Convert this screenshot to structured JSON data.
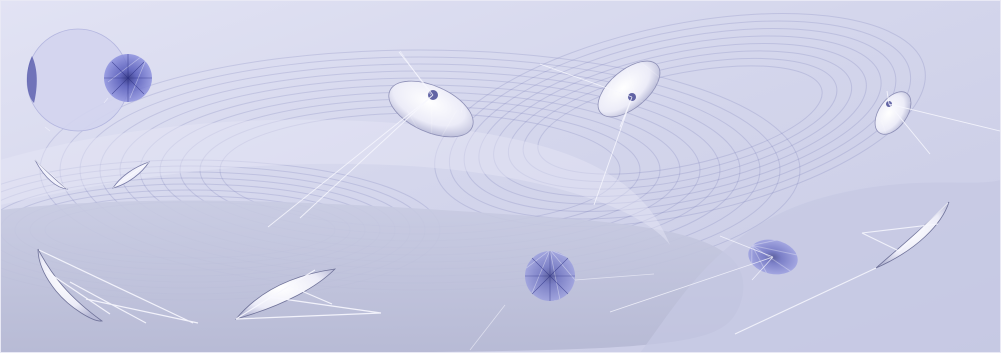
{
  "artwork": {
    "palette": {
      "background_light": "#dadbf0",
      "background_mid": "#c4c6e0",
      "background_shadow": "#a8abc6",
      "line_navy": "#3c3f8f",
      "line_light": "#f4f5ff",
      "disc_white": "#f3f3fb",
      "disc_shadow": "#8d8fb6",
      "small_disc_blue": "#6f73c6"
    },
    "elements": [
      "large-pale-circle",
      "radial-disc-small",
      "ellipse-disc-center-left",
      "ellipse-disc-center-right",
      "ellipse-disc-right",
      "radial-disc-bottom-center",
      "radial-disc-bottom-right",
      "wing-shape-bottom-left",
      "wing-shape-bottom-center",
      "wing-shape-right"
    ]
  }
}
